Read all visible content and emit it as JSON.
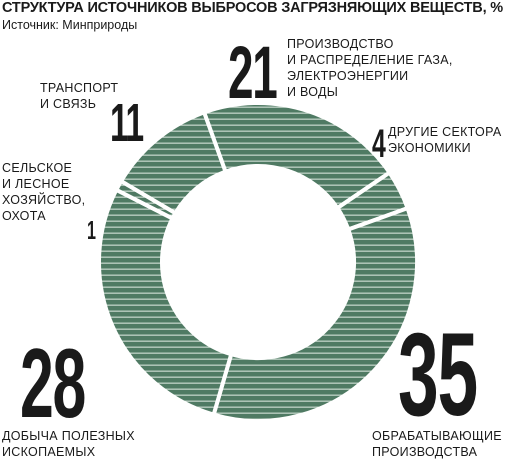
{
  "title": "СТРУКТУРА ИСТОЧНИКОВ ВЫБРОСОВ ЗАГРЯЗНЯЮЩИХ ВЕЩЕСТВ, %",
  "source": "Источник: Минприроды",
  "colors": {
    "fill": "#4f7a63",
    "stripe": "#d4e2d8",
    "gap": "#ffffff",
    "text": "#1a1a1a"
  },
  "chart_data": {
    "type": "pie",
    "subtype": "donut",
    "title": "СТРУКТУРА ИСТОЧНИКОВ ВЫБРОСОВ ЗАГРЯЗНЯЮЩИХ ВЕЩЕСТВ, %",
    "unit": "%",
    "slices": [
      {
        "label": "ПРОИЗВОДСТВО И РАСПРЕДЕЛЕНИЕ ГАЗА, ЭЛЕКТРОЭНЕРГИИ И ВОДЫ",
        "value": 21
      },
      {
        "label": "ДРУГИЕ СЕКТОРА ЭКОНОМИКИ",
        "value": 4
      },
      {
        "label": "ОБРАБАТЫВАЮЩИЕ ПРОИЗВОДСТВА",
        "value": 35
      },
      {
        "label": "ДОБЫЧА ПОЛЕЗНЫХ ИСКОПАЕМЫХ",
        "value": 28
      },
      {
        "label": "СЕЛЬСКОЕ И ЛЕСНОЕ ХОЗЯЙСТВО, ОХОТА",
        "value": 1
      },
      {
        "label": "ТРАНСПОРТ И СВЯЗЬ",
        "value": 11
      }
    ]
  },
  "labels": {
    "gas": {
      "value": "21",
      "text": "ПРОИЗВОДСТВО\nИ РАСПРЕДЕЛЕНИЕ ГАЗА,\nЭЛЕКТРОЭНЕРГИИ\nИ ВОДЫ"
    },
    "other": {
      "value": "4",
      "text": "ДРУГИЕ СЕКТОРА\nЭКОНОМИКИ"
    },
    "manuf": {
      "value": "35",
      "text": "ОБРАБАТЫВАЮЩИЕ\nПРОИЗВОДСТВА"
    },
    "mining": {
      "value": "28",
      "text": "ДОБЫЧА ПОЛЕЗНЫХ\nИСКОПАЕМЫХ"
    },
    "agri": {
      "value": "1",
      "text": "СЕЛЬСКОЕ\nИ ЛЕСНОЕ\nХОЗЯЙСТВО,\nОХОТА"
    },
    "transport": {
      "value": "11",
      "text": "ТРАНСПОРТ\nИ СВЯЗЬ"
    }
  }
}
